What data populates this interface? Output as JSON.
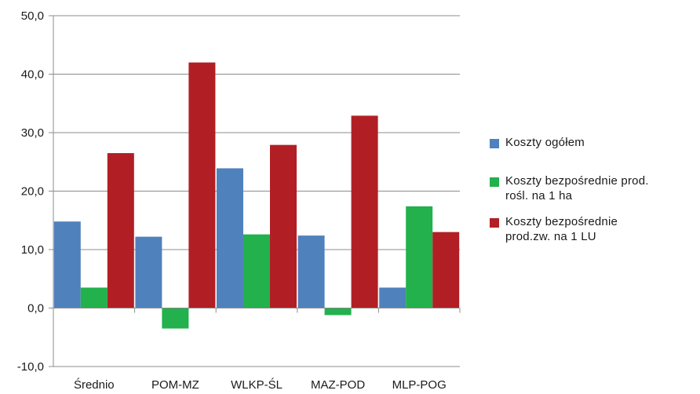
{
  "chart_data": {
    "type": "bar",
    "categories": [
      "Średnio",
      "POM-MZ",
      "WLKP-ŚL",
      "MAZ-POD",
      "MLP-POG"
    ],
    "series": [
      {
        "name": "Koszty ogółem",
        "color": "#4f81bd",
        "values": [
          14.8,
          12.2,
          23.9,
          12.4,
          3.5
        ]
      },
      {
        "name": "Koszty bezpośrednie prod. rośl. na 1 ha",
        "color": "#22b14c",
        "values": [
          3.5,
          -3.5,
          12.6,
          -1.2,
          17.4
        ]
      },
      {
        "name": "Koszty bezpośrednie prod.zw. na 1 LU",
        "color": "#b11f24",
        "values": [
          26.5,
          42.0,
          27.9,
          32.9,
          13.0
        ]
      }
    ],
    "ylim": [
      -10,
      50
    ],
    "yticks": [
      "50,0",
      "40,0",
      "30,0",
      "20,0",
      "10,0",
      "0,0",
      "-10,0"
    ],
    "grid": true,
    "legend_position": "right",
    "title": "",
    "xlabel": "",
    "ylabel": ""
  },
  "legend": {
    "items": [
      {
        "label_line1": "Koszty ogółem",
        "label_line2": ""
      },
      {
        "label_line1": "Koszty bezpośrednie prod.",
        "label_line2": "rośl. na 1 ha"
      },
      {
        "label_line1": "Koszty bezpośrednie",
        "label_line2": "prod.zw. na 1 LU"
      }
    ]
  }
}
